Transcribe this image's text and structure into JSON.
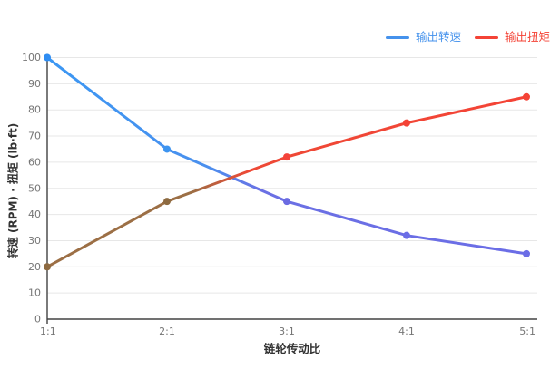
{
  "chart_data": {
    "type": "line",
    "title": "",
    "categories": [
      "1:1",
      "2:1",
      "3:1",
      "4:1",
      "5:1"
    ],
    "series": [
      {
        "name": "输出转速",
        "values": [
          100,
          65,
          45,
          32,
          25
        ],
        "legend_color": "#4592ec",
        "line_gradient": [
          [
            0,
            "#3b97f3"
          ],
          [
            0.33,
            "#4a90ee"
          ],
          [
            0.45,
            "#6b70e4"
          ],
          [
            1,
            "#6b6de6"
          ]
        ],
        "point_colors": [
          "#2f8df2",
          "#3d94f0",
          "#6b6be2",
          "#6b6de6",
          "#6b6de6"
        ]
      },
      {
        "name": "输出扭矩",
        "values": [
          20,
          45,
          62,
          75,
          85
        ],
        "legend_color": "#f44336",
        "line_gradient": [
          [
            0,
            "#9c6f45"
          ],
          [
            0.3,
            "#9c6f45"
          ],
          [
            0.42,
            "#ee4936"
          ],
          [
            1,
            "#f44336"
          ]
        ],
        "point_colors": [
          "#8d6a40",
          "#8d6a40",
          "#f4433a",
          "#f44336",
          "#f44336"
        ]
      }
    ],
    "xlabel": "链轮传动比",
    "ylabel": "转速 (RPM) · 扭矩 (lb·ft)",
    "ylim": [
      0,
      100
    ],
    "ytick_step": 10,
    "ytick_labels": [
      "0",
      "10",
      "20",
      "30",
      "40",
      "50",
      "60",
      "70",
      "80",
      "90",
      "100"
    ],
    "legend_position": "top-right",
    "grid": true
  },
  "style": {
    "background": "#ffffff",
    "grid_color": "#e7e7e7",
    "axis_color": "#424242",
    "tick_label_color": "#757575",
    "axis_title_color": "#333333"
  }
}
